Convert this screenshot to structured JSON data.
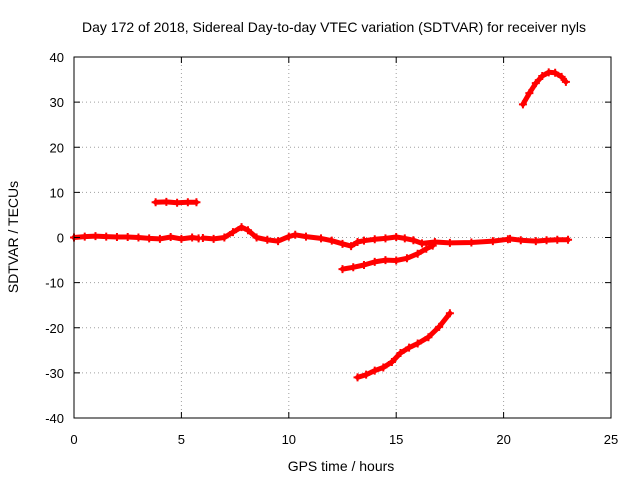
{
  "chart_data": {
    "type": "scatter",
    "title": "Day 172 of 2018, Sidereal Day-to-day VTEC variation (SDTVAR) for receiver nyls",
    "xlabel": "GPS time / hours",
    "ylabel": "SDTVAR / TECUs",
    "xlim": [
      0,
      25
    ],
    "ylim": [
      -40,
      40
    ],
    "xticks": [
      "0",
      "5",
      "10",
      "15",
      "20",
      "25"
    ],
    "yticks": [
      "-40",
      "-30",
      "-20",
      "-10",
      "0",
      "10",
      "20",
      "30",
      "40"
    ],
    "grid": true,
    "series_color": "#ff0000",
    "series": [
      {
        "name": "main-near-zero",
        "points": [
          [
            0.0,
            0.0
          ],
          [
            0.5,
            0.2
          ],
          [
            1.0,
            0.3
          ],
          [
            1.5,
            0.2
          ],
          [
            2.0,
            0.1
          ],
          [
            2.5,
            0.1
          ],
          [
            3.0,
            0.0
          ],
          [
            3.5,
            -0.2
          ],
          [
            4.0,
            -0.3
          ],
          [
            4.5,
            0.1
          ],
          [
            5.0,
            -0.3
          ],
          [
            5.5,
            0.0
          ],
          [
            5.8,
            -0.2
          ]
        ]
      },
      {
        "name": "arc-8h",
        "points": [
          [
            6.0,
            -0.1
          ],
          [
            6.5,
            -0.3
          ],
          [
            7.0,
            0.0
          ],
          [
            7.4,
            1.2
          ],
          [
            7.8,
            2.3
          ],
          [
            8.1,
            1.6
          ],
          [
            8.5,
            0.0
          ],
          [
            9.0,
            -0.5
          ],
          [
            9.5,
            -0.8
          ],
          [
            10.0,
            0.2
          ],
          [
            10.3,
            0.6
          ],
          [
            10.8,
            0.2
          ],
          [
            11.5,
            -0.2
          ],
          [
            12.0,
            -0.7
          ],
          [
            12.5,
            -1.4
          ],
          [
            12.9,
            -1.9
          ],
          [
            13.2,
            -1.0
          ],
          [
            13.5,
            -0.7
          ],
          [
            14.0,
            -0.4
          ],
          [
            14.5,
            -0.2
          ],
          [
            15.0,
            0.1
          ],
          [
            15.4,
            -0.2
          ],
          [
            15.8,
            -0.6
          ],
          [
            16.2,
            -1.3
          ],
          [
            16.8,
            -1.0
          ],
          [
            17.5,
            -1.2
          ],
          [
            18.5,
            -1.1
          ],
          [
            19.5,
            -0.8
          ],
          [
            20.2,
            -0.4
          ]
        ]
      },
      {
        "name": "end-arc",
        "points": [
          [
            20.3,
            -0.3
          ],
          [
            20.8,
            -0.6
          ],
          [
            21.5,
            -0.8
          ],
          [
            22.0,
            -0.6
          ],
          [
            22.5,
            -0.5
          ],
          [
            23.0,
            -0.5
          ]
        ]
      },
      {
        "name": "segment-8",
        "points": [
          [
            3.8,
            7.8
          ],
          [
            4.3,
            7.9
          ],
          [
            4.8,
            7.7
          ],
          [
            5.3,
            7.8
          ],
          [
            5.7,
            7.8
          ]
        ]
      },
      {
        "name": "segment-minus7",
        "points": [
          [
            12.5,
            -7.0
          ],
          [
            13.0,
            -6.6
          ],
          [
            13.5,
            -6.1
          ],
          [
            14.0,
            -5.4
          ],
          [
            14.5,
            -5.0
          ],
          [
            15.0,
            -5.1
          ],
          [
            15.5,
            -4.6
          ],
          [
            16.0,
            -3.6
          ],
          [
            16.4,
            -2.5
          ],
          [
            16.7,
            -1.8
          ]
        ]
      },
      {
        "name": "segment-minus30",
        "points": [
          [
            13.2,
            -31.0
          ],
          [
            13.6,
            -30.4
          ],
          [
            14.0,
            -29.5
          ],
          [
            14.4,
            -28.8
          ],
          [
            14.8,
            -27.6
          ],
          [
            15.2,
            -25.6
          ],
          [
            15.6,
            -24.4
          ],
          [
            16.0,
            -23.5
          ],
          [
            16.5,
            -22.1
          ],
          [
            17.0,
            -19.8
          ],
          [
            17.5,
            -16.8
          ]
        ]
      },
      {
        "name": "segment-plus30",
        "points": [
          [
            20.9,
            29.5
          ],
          [
            21.2,
            32.0
          ],
          [
            21.5,
            34.2
          ],
          [
            21.8,
            35.8
          ],
          [
            22.1,
            36.6
          ],
          [
            22.4,
            36.5
          ],
          [
            22.7,
            35.6
          ],
          [
            22.9,
            34.5
          ]
        ]
      }
    ]
  }
}
